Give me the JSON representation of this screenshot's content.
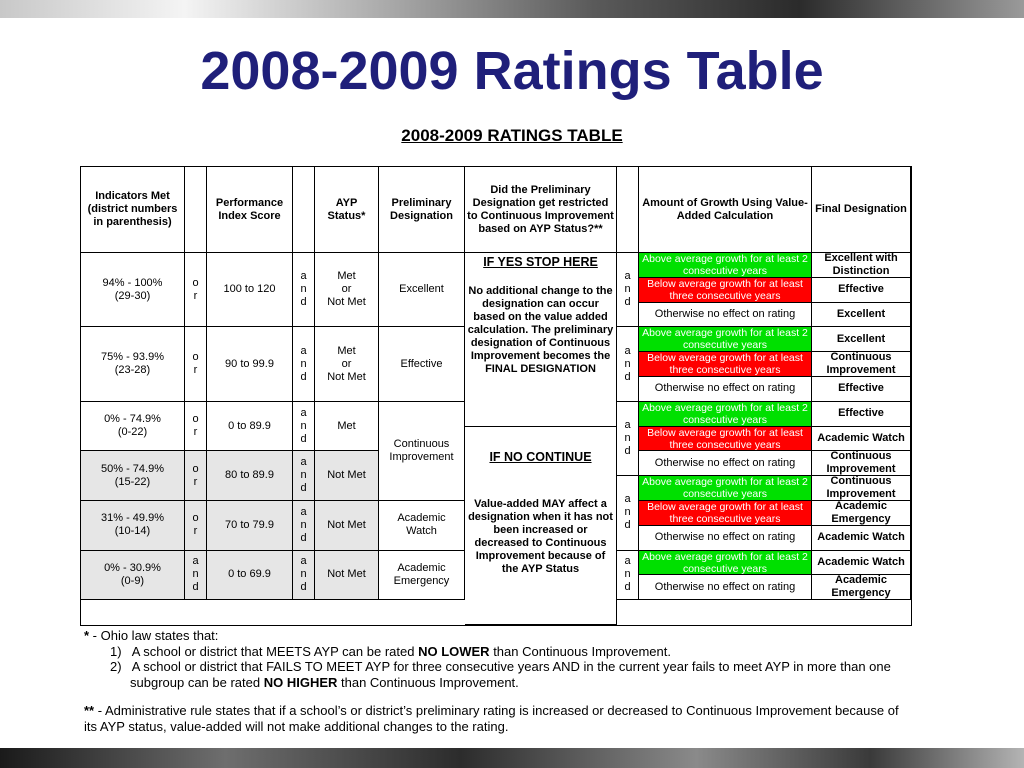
{
  "slide": {
    "title": "2008-2009 Ratings Table"
  },
  "table_title": "2008-2009 RATINGS TABLE",
  "headers": {
    "indicators": "Indicators Met (district numbers in parenthesis)",
    "pi_score": "Performance Index Score",
    "ayp": "AYP Status*",
    "preliminary": "Preliminary Designation",
    "restricted": "Did the Preliminary Designation get restricted to Continuous Improvement based on AYP Status?**",
    "growth": "Amount of Growth Using Value-Added Calculation",
    "final": "Final Designation"
  },
  "connectors": {
    "or": "o\nr",
    "and": "a\nn\nd"
  },
  "rows": [
    {
      "indicators": "94% - 100%\n(29-30)",
      "pi": "100 to 120",
      "ayp": "Met\nor\nNot Met",
      "prelim": "Excellent"
    },
    {
      "indicators": "75% - 93.9%\n(23-28)",
      "pi": "90 to 99.9",
      "ayp": "Met\nor\nNot Met",
      "prelim": "Effective"
    },
    {
      "indicators": "0% - 74.9%\n(0-22)",
      "pi": "0 to 89.9",
      "ayp": "Met"
    },
    {
      "indicators": "50% - 74.9%\n(15-22)",
      "pi": "80 to 89.9",
      "ayp": "Not Met"
    },
    {
      "indicators": "31% - 49.9%\n(10-14)",
      "pi": "70 to 79.9",
      "ayp": "Not Met",
      "prelim": "Academic\nWatch"
    },
    {
      "indicators": "0% - 30.9%\n(0-9)",
      "pi": "0 to 69.9",
      "ayp": "Not Met",
      "prelim": "Academic\nEmergency"
    }
  ],
  "continuous_improvement": "Continuous\nImprovement",
  "if_yes": {
    "heading": "IF YES STOP HERE",
    "text": "No additional change to the designation can occur based on the value added calculation. The preliminary designation of Continuous Improvement becomes the FINAL DESIGNATION"
  },
  "if_no": {
    "heading": "IF NO CONTINUE",
    "text": "Value-added MAY affect a designation when it has not been increased or decreased to Continuous Improvement because of the AYP Status"
  },
  "growth_labels": {
    "above": "Above average growth for at least 2 consecutive years",
    "below": "Below average growth for at least three consecutive years",
    "otherwise": "Otherwise no effect on rating"
  },
  "finals": [
    "Excellent with Distinction",
    "Effective",
    "Excellent",
    "Excellent",
    "Continuous Improvement",
    "Effective",
    "Effective",
    "Academic Watch",
    "Continuous Improvement",
    "Continuous Improvement",
    "Academic Emergency",
    "Academic Watch",
    "Academic Watch",
    "Academic Emergency"
  ],
  "colors": {
    "title": "#1f1f7a",
    "above": "#00e000",
    "below": "#ff0000",
    "gray_row": "#e6e6e6"
  },
  "notes": {
    "star_mark": "*",
    "star_intro": " - Ohio law states that:",
    "item1_num": "1)",
    "item1_a": "A school or district that MEETS AYP can be rated ",
    "item1_b": "NO LOWER",
    "item1_c": " than Continuous Improvement.",
    "item2_num": "2)",
    "item2_a": "A school or district that FAILS TO MEET AYP for three consecutive years AND in the current year fails to meet AYP in more than one",
    "item2_b": "subgroup can be rated ",
    "item2_c": "NO HIGHER",
    "item2_d": " than Continuous Improvement.",
    "dstar_mark": "**",
    "dstar_a": " - Administrative rule states that if a school’s or district’s preliminary rating is increased or decreased to Continuous Improvement because of",
    "dstar_b": "its AYP status, value-added will not make additional changes to the rating."
  }
}
